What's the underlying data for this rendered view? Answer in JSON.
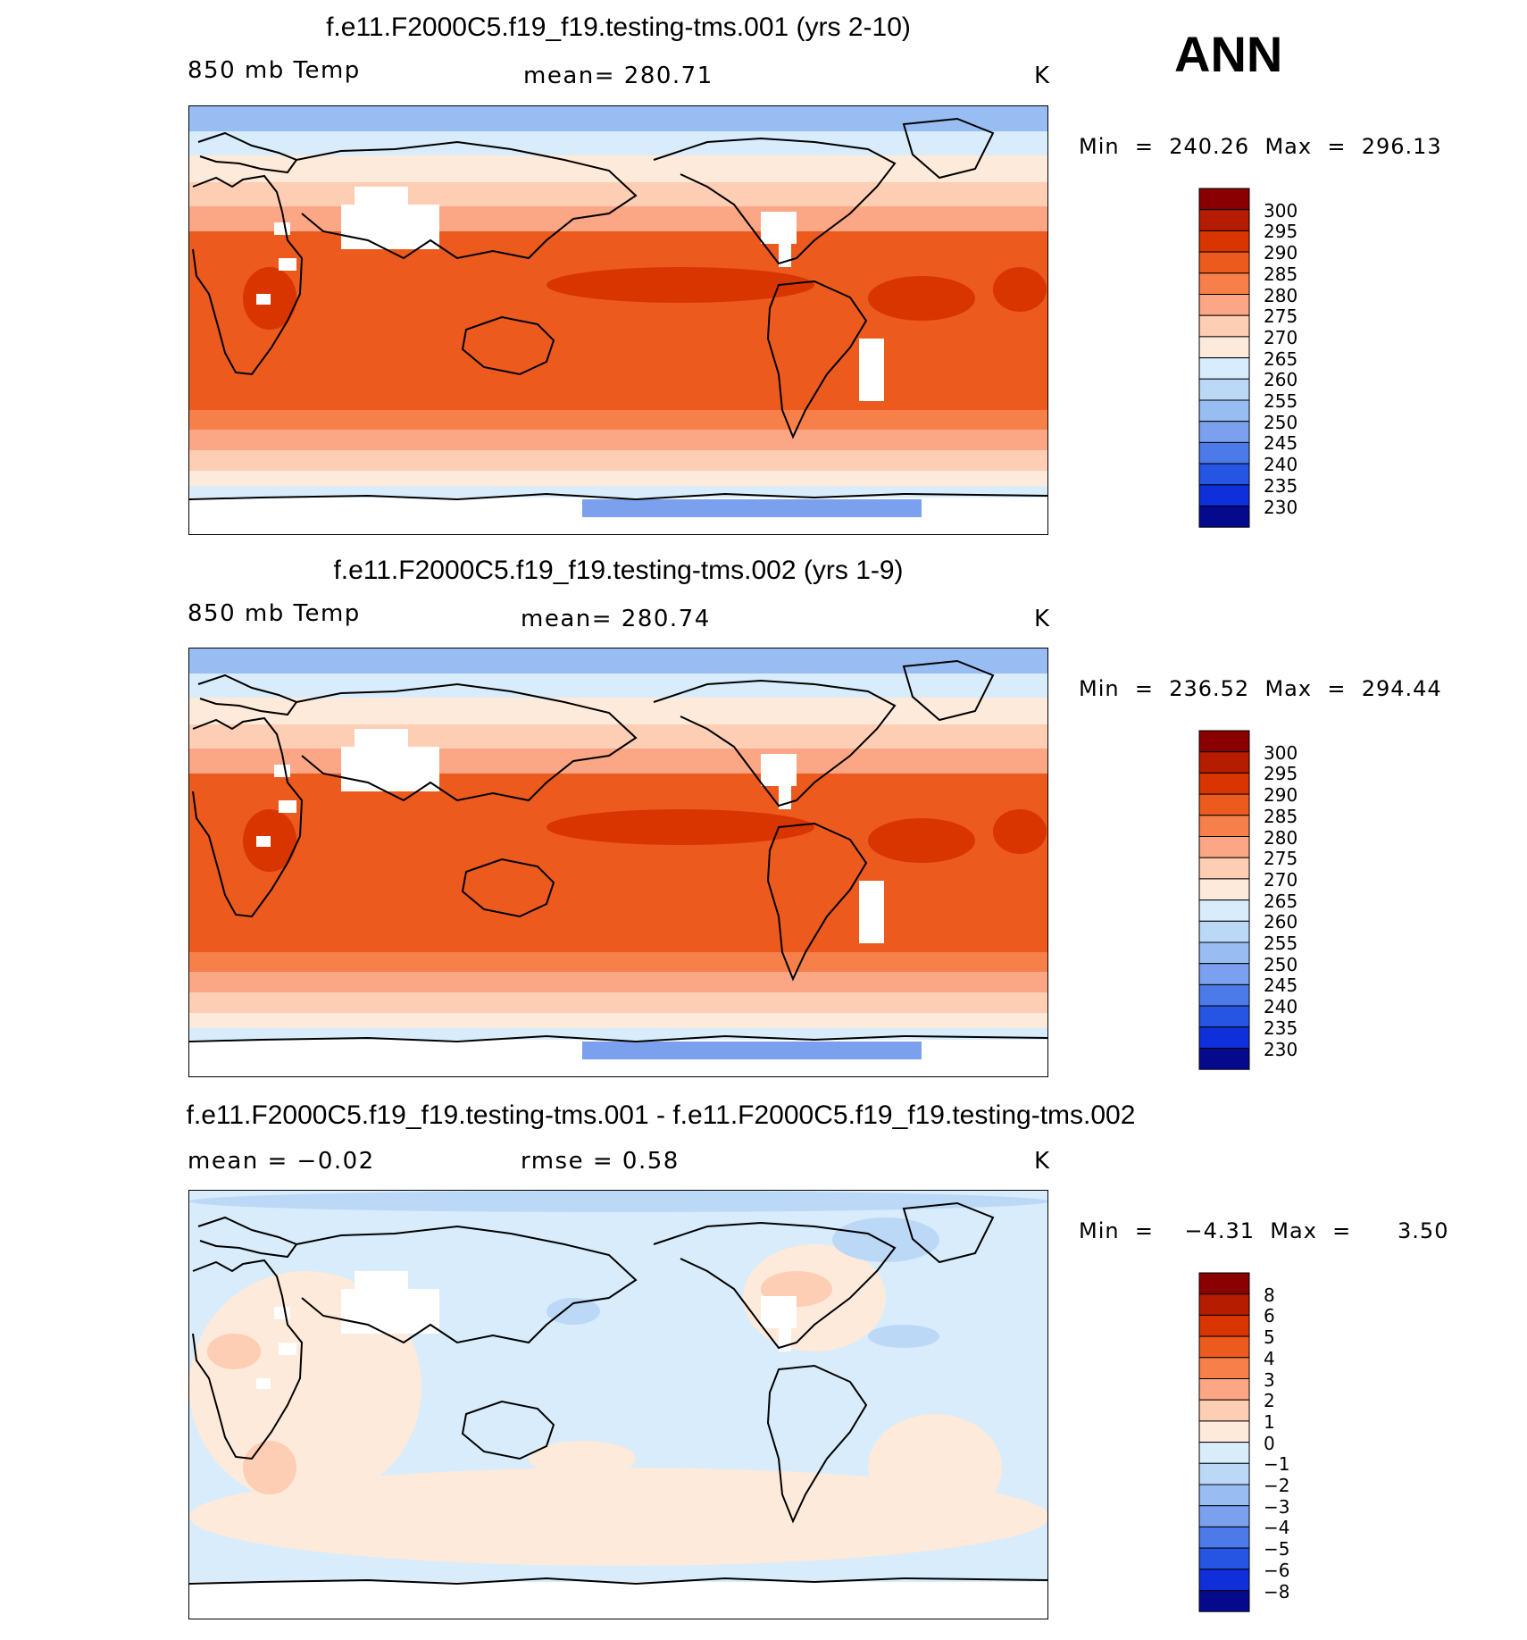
{
  "season": "ANN",
  "panels": [
    {
      "title": "f.e11.F2000C5.f19_f19.testing-tms.001 (yrs 2-10)",
      "left": "850 mb Temp",
      "center": "mean=  280.71",
      "units": "K",
      "minmax": "Min  =  240.26  Max  =  296.13",
      "kind": "abs",
      "colorbar": [
        "300",
        "295",
        "290",
        "285",
        "280",
        "275",
        "270",
        "265",
        "260",
        "255",
        "250",
        "245",
        "240",
        "235",
        "230"
      ]
    },
    {
      "title": "f.e11.F2000C5.f19_f19.testing-tms.002 (yrs 1-9)",
      "left": "850 mb Temp",
      "center": "mean=  280.74",
      "units": "K",
      "minmax": "Min  =  236.52  Max  =  294.44",
      "kind": "abs",
      "colorbar": [
        "300",
        "295",
        "290",
        "285",
        "280",
        "275",
        "270",
        "265",
        "260",
        "255",
        "250",
        "245",
        "240",
        "235",
        "230"
      ]
    },
    {
      "title": "f.e11.F2000C5.f19_f19.testing-tms.001 - f.e11.F2000C5.f19_f19.testing-tms.002",
      "left": "mean  =    −0.02",
      "center": "rmse  =     0.58",
      "units": "K",
      "minmax": "Min  =    −4.31  Max  =      3.50",
      "kind": "diff",
      "colorbar": [
        "8",
        "6",
        "5",
        "4",
        "3",
        "2",
        "1",
        "0",
        "−1",
        "−2",
        "−3",
        "−4",
        "−5",
        "−6",
        "−8"
      ]
    }
  ],
  "palette": [
    "#8a0000",
    "#b51c00",
    "#d83500",
    "#ec5a1e",
    "#f7804a",
    "#fba684",
    "#fdcdb4",
    "#feeada",
    "#d8ecfb",
    "#bcd8f7",
    "#98bdf2",
    "#7aa0ee",
    "#4c7ae8",
    "#2654e3",
    "#0e2fd9",
    "#050a8c"
  ],
  "colors": {
    "land_mask": "#ffffff",
    "coast": "#000000"
  }
}
